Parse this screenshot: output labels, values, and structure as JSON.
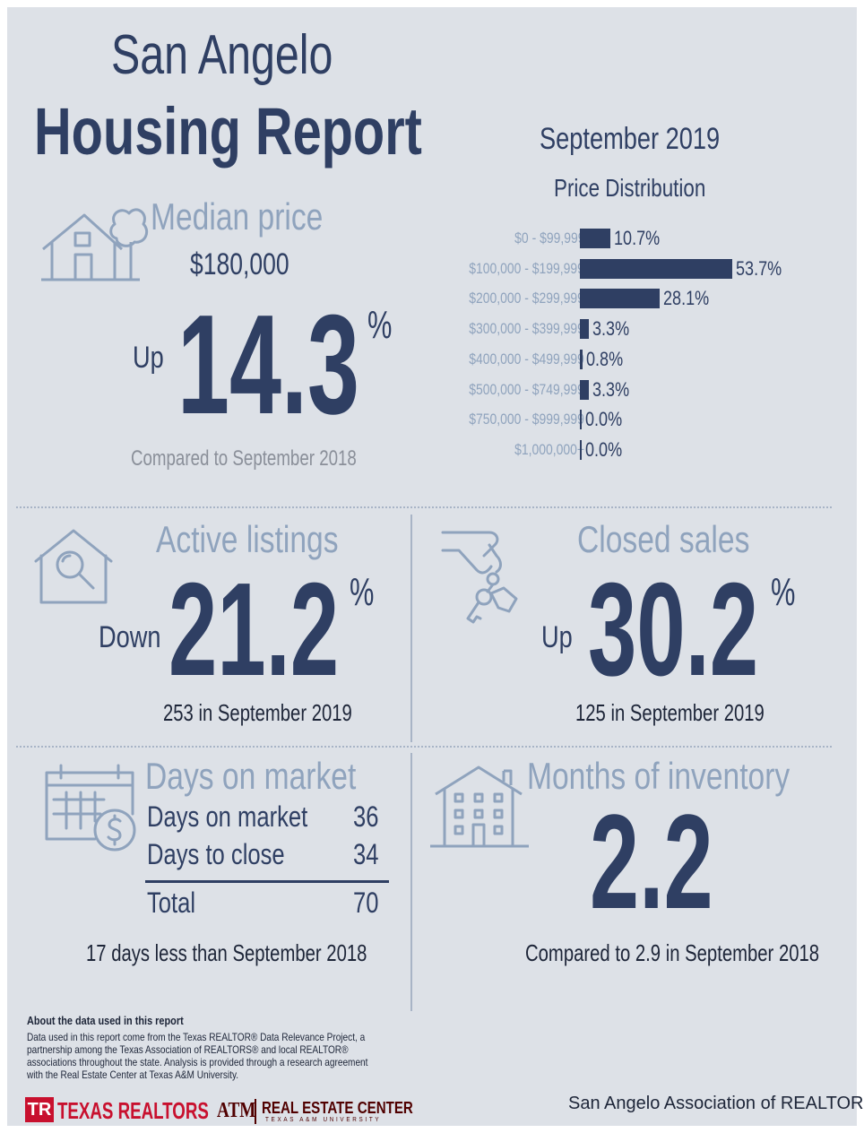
{
  "title": {
    "line1": "San Angelo",
    "line2": "Housing Report"
  },
  "period": "September 2019",
  "median": {
    "heading": "Median price",
    "price": "$180,000",
    "direction": "Up",
    "change": "14.3",
    "unit": "%",
    "compare": "Compared to September 2018"
  },
  "chart_data": {
    "type": "bar",
    "title": "Price Distribution",
    "categories": [
      "$0 - $99,999",
      "$100,000 - $199,999",
      "$200,000 - $299,999",
      "$300,000 - $399,999",
      "$400,000 - $499,999",
      "$500,000 - $749,999",
      "$750,000 - $999,999",
      "$1,000,000+"
    ],
    "values": [
      10.7,
      53.7,
      28.1,
      3.3,
      0.8,
      3.3,
      0.0,
      0.0
    ],
    "labels": [
      "10.7%",
      "53.7%",
      "28.1%",
      "3.3%",
      "0.8%",
      "3.3%",
      "0.0%",
      "0.0%"
    ],
    "orientation": "horizontal",
    "grid": false
  },
  "active": {
    "heading": "Active listings",
    "direction": "Down",
    "change": "21.2",
    "unit": "%",
    "sub": "253 in September 2019"
  },
  "closed": {
    "heading": "Closed sales",
    "direction": "Up",
    "change": "30.2",
    "unit": "%",
    "sub": "125 in September 2019"
  },
  "dom": {
    "heading": "Days on market",
    "rows": [
      {
        "label": "Days on market",
        "value": "36"
      },
      {
        "label": "Days to close",
        "value": "34"
      }
    ],
    "total_label": "Total",
    "total_value": "70",
    "sub": "17 days less than September 2018"
  },
  "inventory": {
    "heading": "Months of inventory",
    "value": "2.2",
    "sub": "Compared to 2.9 in September 2018"
  },
  "about": {
    "heading": "About the data used in this report",
    "lines": [
      "Data used in this report come from the Texas REALTOR® Data Relevance Project, a",
      "partnership among the Texas Association of REALTORS® and local REALTOR®",
      "associations throughout the state. Analysis is provided through a research agreement",
      "with the Real Estate Center at Texas A&M University."
    ]
  },
  "footer": {
    "tr_mark": "TR",
    "tr_name": "TEXAS REALTORS",
    "atm_mark": "ATM",
    "rec_name": "REAL ESTATE CENTER",
    "rec_sub": "TEXAS A&M UNIVERSITY",
    "association": "San Angelo Association of REALTORS®"
  },
  "colors": {
    "navy": "#2f3f63",
    "pale": "#8fa3bd",
    "background": "#dde1e7",
    "brand_red": "#c8102e"
  },
  "icons": [
    "house-tree-icon",
    "house-search-icon",
    "hand-keys-icon",
    "calendar-dollar-icon",
    "apartment-building-icon"
  ]
}
